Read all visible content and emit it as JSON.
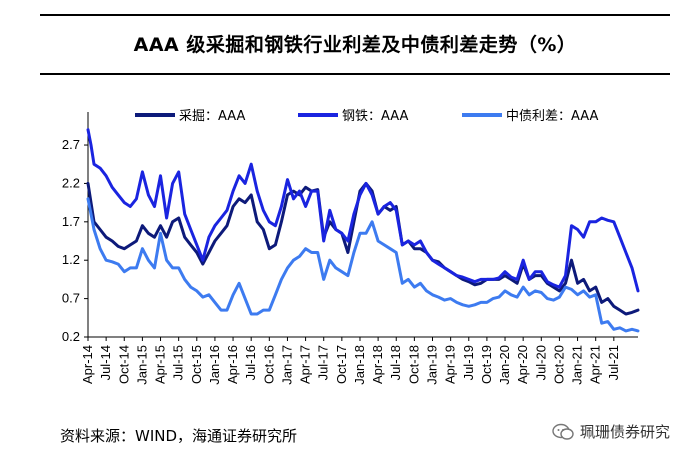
{
  "title": "AAA 级采掘和钢铁行业利差及中债利差走势（%）",
  "source": "资料来源：WIND，海通证券研究所",
  "watermark": "珮珊债券研究",
  "chart_data": {
    "type": "line",
    "title": "AAA 级采掘和钢铁行业利差及中债利差走势（%）",
    "ylim": [
      0.2,
      3.0
    ],
    "yticks": [
      "2.7",
      "2.2",
      "1.7",
      "1.2",
      "0.7",
      "0.2"
    ],
    "ytick_values": [
      2.7,
      2.2,
      1.7,
      1.2,
      0.7,
      0.2
    ],
    "x_range_months": [
      0,
      91
    ],
    "xticks": [
      {
        "label": "Apr-14",
        "m": 0
      },
      {
        "label": "Jul-14",
        "m": 3
      },
      {
        "label": "Oct-14",
        "m": 6
      },
      {
        "label": "Jan-15",
        "m": 9
      },
      {
        "label": "Apr-15",
        "m": 12
      },
      {
        "label": "Jul-15",
        "m": 15
      },
      {
        "label": "Oct-15",
        "m": 18
      },
      {
        "label": "Jan-16",
        "m": 21
      },
      {
        "label": "Apr-16",
        "m": 24
      },
      {
        "label": "Jul-16",
        "m": 27
      },
      {
        "label": "Oct-16",
        "m": 30
      },
      {
        "label": "Jan-17",
        "m": 33
      },
      {
        "label": "Apr-17",
        "m": 36
      },
      {
        "label": "Jul-17",
        "m": 39
      },
      {
        "label": "Oct-17",
        "m": 42
      },
      {
        "label": "Jan-18",
        "m": 45
      },
      {
        "label": "Apr-18",
        "m": 48
      },
      {
        "label": "Jul-18",
        "m": 51
      },
      {
        "label": "Oct-18",
        "m": 54
      },
      {
        "label": "Jan-19",
        "m": 57
      },
      {
        "label": "Apr-19",
        "m": 60
      },
      {
        "label": "Jul-19",
        "m": 63
      },
      {
        "label": "Oct-19",
        "m": 66
      },
      {
        "label": "Jan-20",
        "m": 69
      },
      {
        "label": "Apr-20",
        "m": 72
      },
      {
        "label": "Jul-20",
        "m": 75
      },
      {
        "label": "Oct-20",
        "m": 78
      },
      {
        "label": "Jan-21",
        "m": 81
      },
      {
        "label": "Apr-21",
        "m": 84
      },
      {
        "label": "Jul-21",
        "m": 87
      }
    ],
    "series": [
      {
        "name": "采掘：AAA",
        "color": "#0d1a7a",
        "points": [
          [
            0,
            2.2
          ],
          [
            0.5,
            1.95
          ],
          [
            1,
            1.7
          ],
          [
            2,
            1.6
          ],
          [
            3,
            1.5
          ],
          [
            4,
            1.45
          ],
          [
            5,
            1.38
          ],
          [
            6,
            1.35
          ],
          [
            7,
            1.4
          ],
          [
            8,
            1.45
          ],
          [
            9,
            1.65
          ],
          [
            10,
            1.55
          ],
          [
            11,
            1.5
          ],
          [
            12,
            1.65
          ],
          [
            13,
            1.5
          ],
          [
            14,
            1.7
          ],
          [
            15,
            1.75
          ],
          [
            16,
            1.5
          ],
          [
            17,
            1.4
          ],
          [
            18,
            1.3
          ],
          [
            19,
            1.15
          ],
          [
            20,
            1.3
          ],
          [
            21,
            1.45
          ],
          [
            22,
            1.55
          ],
          [
            23,
            1.65
          ],
          [
            24,
            1.9
          ],
          [
            25,
            2.0
          ],
          [
            26,
            1.95
          ],
          [
            27,
            2.05
          ],
          [
            28,
            1.7
          ],
          [
            29,
            1.6
          ],
          [
            30,
            1.35
          ],
          [
            31,
            1.4
          ],
          [
            32,
            1.7
          ],
          [
            33,
            2.05
          ],
          [
            34,
            2.1
          ],
          [
            35,
            2.05
          ],
          [
            36,
            2.15
          ],
          [
            37,
            2.1
          ],
          [
            38,
            2.12
          ],
          [
            39,
            1.5
          ],
          [
            40,
            1.7
          ],
          [
            41,
            1.6
          ],
          [
            42,
            1.55
          ],
          [
            43,
            1.3
          ],
          [
            44,
            1.7
          ],
          [
            45,
            2.1
          ],
          [
            46,
            2.2
          ],
          [
            47,
            2.1
          ],
          [
            48,
            1.8
          ],
          [
            49,
            1.9
          ],
          [
            50,
            1.85
          ],
          [
            51,
            1.9
          ],
          [
            52,
            1.4
          ],
          [
            53,
            1.45
          ],
          [
            54,
            1.35
          ],
          [
            55,
            1.35
          ],
          [
            56,
            1.3
          ],
          [
            57,
            1.2
          ],
          [
            58,
            1.18
          ],
          [
            59,
            1.1
          ],
          [
            60,
            1.05
          ],
          [
            61,
            1.0
          ],
          [
            62,
            0.95
          ],
          [
            63,
            0.92
          ],
          [
            64,
            0.88
          ],
          [
            65,
            0.9
          ],
          [
            66,
            0.95
          ],
          [
            67,
            0.95
          ],
          [
            68,
            0.95
          ],
          [
            69,
            1.0
          ],
          [
            70,
            0.95
          ],
          [
            71,
            0.9
          ],
          [
            72,
            1.15
          ],
          [
            73,
            0.95
          ],
          [
            74,
            1.0
          ],
          [
            75,
            1.0
          ],
          [
            76,
            0.9
          ],
          [
            77,
            0.85
          ],
          [
            78,
            0.8
          ],
          [
            79,
            0.9
          ],
          [
            80,
            1.2
          ],
          [
            81,
            0.9
          ],
          [
            82,
            0.95
          ],
          [
            83,
            0.8
          ],
          [
            84,
            0.85
          ],
          [
            85,
            0.65
          ],
          [
            86,
            0.7
          ],
          [
            87,
            0.6
          ],
          [
            88,
            0.55
          ],
          [
            89,
            0.5
          ],
          [
            90,
            0.52
          ],
          [
            91,
            0.55
          ]
        ]
      },
      {
        "name": "钢铁：AAA",
        "color": "#1a24e0",
        "points": [
          [
            0,
            2.9
          ],
          [
            0.5,
            2.7
          ],
          [
            1,
            2.45
          ],
          [
            2,
            2.4
          ],
          [
            3,
            2.3
          ],
          [
            4,
            2.15
          ],
          [
            5,
            2.05
          ],
          [
            6,
            1.95
          ],
          [
            7,
            1.9
          ],
          [
            8,
            2.0
          ],
          [
            9,
            2.35
          ],
          [
            10,
            2.05
          ],
          [
            11,
            1.9
          ],
          [
            12,
            2.3
          ],
          [
            13,
            1.75
          ],
          [
            14,
            2.2
          ],
          [
            15,
            2.35
          ],
          [
            16,
            1.8
          ],
          [
            17,
            1.6
          ],
          [
            18,
            1.4
          ],
          [
            19,
            1.2
          ],
          [
            20,
            1.5
          ],
          [
            21,
            1.65
          ],
          [
            22,
            1.75
          ],
          [
            23,
            1.85
          ],
          [
            24,
            2.1
          ],
          [
            25,
            2.3
          ],
          [
            26,
            2.2
          ],
          [
            27,
            2.45
          ],
          [
            28,
            2.1
          ],
          [
            29,
            1.85
          ],
          [
            30,
            1.7
          ],
          [
            31,
            1.65
          ],
          [
            32,
            1.9
          ],
          [
            33,
            2.25
          ],
          [
            34,
            2.0
          ],
          [
            35,
            2.1
          ],
          [
            36,
            1.9
          ],
          [
            37,
            2.1
          ],
          [
            38,
            2.1
          ],
          [
            39,
            1.45
          ],
          [
            40,
            1.85
          ],
          [
            41,
            1.6
          ],
          [
            42,
            1.55
          ],
          [
            43,
            1.45
          ],
          [
            44,
            1.8
          ],
          [
            45,
            2.05
          ],
          [
            46,
            2.2
          ],
          [
            47,
            2.05
          ],
          [
            48,
            1.8
          ],
          [
            49,
            1.9
          ],
          [
            50,
            1.95
          ],
          [
            51,
            1.85
          ],
          [
            52,
            1.4
          ],
          [
            53,
            1.45
          ],
          [
            54,
            1.4
          ],
          [
            55,
            1.45
          ],
          [
            56,
            1.3
          ],
          [
            57,
            1.2
          ],
          [
            58,
            1.15
          ],
          [
            59,
            1.1
          ],
          [
            60,
            1.05
          ],
          [
            61,
            1.0
          ],
          [
            62,
            0.98
          ],
          [
            63,
            0.95
          ],
          [
            64,
            0.92
          ],
          [
            65,
            0.95
          ],
          [
            66,
            0.95
          ],
          [
            67,
            0.95
          ],
          [
            68,
            0.97
          ],
          [
            69,
            1.05
          ],
          [
            70,
            0.98
          ],
          [
            71,
            0.95
          ],
          [
            72,
            1.2
          ],
          [
            73,
            0.95
          ],
          [
            74,
            1.05
          ],
          [
            75,
            1.05
          ],
          [
            76,
            0.92
          ],
          [
            77,
            0.88
          ],
          [
            78,
            0.85
          ],
          [
            79,
            1.0
          ],
          [
            80,
            1.65
          ],
          [
            81,
            1.6
          ],
          [
            82,
            1.5
          ],
          [
            83,
            1.7
          ],
          [
            84,
            1.7
          ],
          [
            85,
            1.75
          ],
          [
            86,
            1.72
          ],
          [
            87,
            1.7
          ],
          [
            88,
            1.5
          ],
          [
            89,
            1.3
          ],
          [
            90,
            1.1
          ],
          [
            91,
            0.8
          ]
        ]
      },
      {
        "name": "中债利差：AAA",
        "color": "#3d7bf0",
        "points": [
          [
            0,
            2.0
          ],
          [
            0.5,
            1.8
          ],
          [
            1,
            1.6
          ],
          [
            2,
            1.35
          ],
          [
            3,
            1.2
          ],
          [
            4,
            1.18
          ],
          [
            5,
            1.15
          ],
          [
            6,
            1.05
          ],
          [
            7,
            1.1
          ],
          [
            8,
            1.1
          ],
          [
            9,
            1.35
          ],
          [
            10,
            1.2
          ],
          [
            11,
            1.1
          ],
          [
            12,
            1.55
          ],
          [
            13,
            1.2
          ],
          [
            14,
            1.1
          ],
          [
            15,
            1.1
          ],
          [
            16,
            0.95
          ],
          [
            17,
            0.85
          ],
          [
            18,
            0.8
          ],
          [
            19,
            0.72
          ],
          [
            20,
            0.75
          ],
          [
            21,
            0.65
          ],
          [
            22,
            0.55
          ],
          [
            23,
            0.55
          ],
          [
            24,
            0.75
          ],
          [
            25,
            0.9
          ],
          [
            26,
            0.7
          ],
          [
            27,
            0.5
          ],
          [
            28,
            0.5
          ],
          [
            29,
            0.55
          ],
          [
            30,
            0.55
          ],
          [
            31,
            0.75
          ],
          [
            32,
            0.95
          ],
          [
            33,
            1.1
          ],
          [
            34,
            1.2
          ],
          [
            35,
            1.25
          ],
          [
            36,
            1.35
          ],
          [
            37,
            1.3
          ],
          [
            38,
            1.3
          ],
          [
            39,
            0.95
          ],
          [
            40,
            1.2
          ],
          [
            41,
            1.1
          ],
          [
            42,
            1.05
          ],
          [
            43,
            1.0
          ],
          [
            44,
            1.3
          ],
          [
            45,
            1.55
          ],
          [
            46,
            1.55
          ],
          [
            47,
            1.7
          ],
          [
            48,
            1.45
          ],
          [
            49,
            1.4
          ],
          [
            50,
            1.35
          ],
          [
            51,
            1.3
          ],
          [
            52,
            0.9
          ],
          [
            53,
            0.95
          ],
          [
            54,
            0.85
          ],
          [
            55,
            0.9
          ],
          [
            56,
            0.8
          ],
          [
            57,
            0.75
          ],
          [
            58,
            0.72
          ],
          [
            59,
            0.68
          ],
          [
            60,
            0.7
          ],
          [
            61,
            0.65
          ],
          [
            62,
            0.62
          ],
          [
            63,
            0.6
          ],
          [
            64,
            0.62
          ],
          [
            65,
            0.65
          ],
          [
            66,
            0.65
          ],
          [
            67,
            0.7
          ],
          [
            68,
            0.72
          ],
          [
            69,
            0.8
          ],
          [
            70,
            0.75
          ],
          [
            71,
            0.72
          ],
          [
            72,
            0.85
          ],
          [
            73,
            0.75
          ],
          [
            74,
            0.8
          ],
          [
            75,
            0.78
          ],
          [
            76,
            0.7
          ],
          [
            77,
            0.68
          ],
          [
            78,
            0.72
          ],
          [
            79,
            0.85
          ],
          [
            80,
            0.82
          ],
          [
            81,
            0.75
          ],
          [
            82,
            0.8
          ],
          [
            83,
            0.72
          ],
          [
            84,
            0.75
          ],
          [
            85,
            0.38
          ],
          [
            86,
            0.4
          ],
          [
            87,
            0.3
          ],
          [
            88,
            0.32
          ],
          [
            89,
            0.28
          ],
          [
            90,
            0.3
          ],
          [
            91,
            0.28
          ]
        ]
      }
    ]
  }
}
